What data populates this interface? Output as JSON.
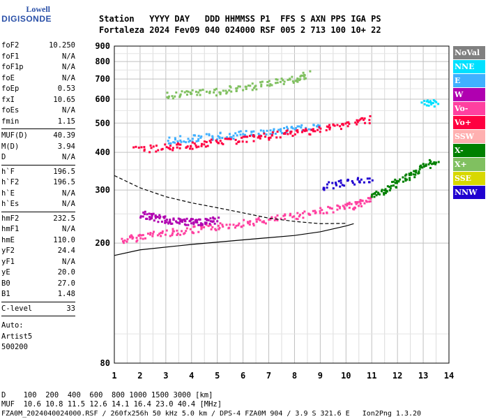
{
  "logo": {
    "line1": "Lowell",
    "line2": "DIGISONDE"
  },
  "header": {
    "labels": "Station   YYYY DAY   DDD HHMMSS P1  FFS S AXN PPS IGA PS",
    "values": "Fortaleza 2024 Fev09 040 024000 RSF 005 2 713 100 10+ 22"
  },
  "params": {
    "group1": [
      {
        "k": "foF2",
        "v": "10.250"
      },
      {
        "k": "foF1",
        "v": "N/A"
      },
      {
        "k": "foF1p",
        "v": "N/A"
      },
      {
        "k": "foE",
        "v": "N/A"
      },
      {
        "k": "foEp",
        "v": "0.53"
      },
      {
        "k": "fxI",
        "v": "10.65"
      },
      {
        "k": "foEs",
        "v": "N/A"
      },
      {
        "k": "fmin",
        "v": "1.15"
      }
    ],
    "group2": [
      {
        "k": "MUF(D)",
        "v": "40.39"
      },
      {
        "k": "M(D)",
        "v": "3.94"
      },
      {
        "k": "D",
        "v": "N/A"
      }
    ],
    "group3": [
      {
        "k": "h`F",
        "v": "196.5"
      },
      {
        "k": "h`F2",
        "v": "196.5"
      },
      {
        "k": "h`E",
        "v": "N/A"
      },
      {
        "k": "h`Es",
        "v": "N/A"
      }
    ],
    "group4": [
      {
        "k": "hmF2",
        "v": "232.5"
      },
      {
        "k": "hmF1",
        "v": "N/A"
      },
      {
        "k": "hmE",
        "v": "110.0"
      },
      {
        "k": "yF2",
        "v": "24.4"
      },
      {
        "k": "yF1",
        "v": "N/A"
      },
      {
        "k": "yE",
        "v": "20.0"
      },
      {
        "k": "B0",
        "v": "27.0"
      },
      {
        "k": "B1",
        "v": "1.48"
      }
    ],
    "group5": [
      {
        "k": "C-level",
        "v": "33"
      }
    ],
    "auto": [
      "Auto:",
      "Artist5",
      "500200"
    ]
  },
  "legend": [
    {
      "label": "NoVal",
      "color": "#808080"
    },
    {
      "label": "NNE",
      "color": "#00e0ff"
    },
    {
      "label": "E",
      "color": "#40b0ff"
    },
    {
      "label": "W",
      "color": "#b000b0"
    },
    {
      "label": "Vo-",
      "color": "#ff40a0"
    },
    {
      "label": "Vo+",
      "color": "#ff0040"
    },
    {
      "label": "SSW",
      "color": "#ffb0b0"
    },
    {
      "label": "X-",
      "color": "#008000"
    },
    {
      "label": "X+",
      "color": "#80c060"
    },
    {
      "label": "SSE",
      "color": "#d8d800"
    },
    {
      "label": "NNW",
      "color": "#2000d0"
    }
  ],
  "bottom": {
    "d_line": "D    100  200  400  600  800 1000 1500 3000 [km]",
    "muf_line": "MUF  10.6 10.8 11.5 12.6 14.1 16.4 23.0 40.4 [MHz]",
    "footer": "FZA0M_2024040024000.RSF / 260fx256h 50 kHz 5.0 km / DPS-4 FZA0M 904 / 3.9 S 321.6 E   Ion2Png 1.3.20"
  },
  "chart_data": {
    "type": "scatter",
    "xlim": [
      1,
      14
    ],
    "ylim": [
      80,
      900
    ],
    "y_axis_scale": "log",
    "x_ticks": [
      1,
      2,
      3,
      4,
      5,
      6,
      7,
      8,
      9,
      10,
      11,
      12,
      13,
      14
    ],
    "y_ticks": [
      80,
      200,
      300,
      400,
      500,
      600,
      700,
      800,
      900
    ],
    "grid": true,
    "traces": [
      {
        "name": "Vo-",
        "color": "#ff40a0",
        "x": [
          1.3,
          2,
          3,
          4,
          5,
          6,
          7,
          8,
          9,
          10,
          10.5,
          11
        ],
        "y": [
          205,
          212,
          218,
          222,
          228,
          235,
          240,
          248,
          258,
          265,
          272,
          285
        ]
      },
      {
        "name": "X-",
        "color": "#008000",
        "x": [
          11,
          11.5,
          12,
          12.5,
          13,
          13.5
        ],
        "y": [
          290,
          300,
          320,
          340,
          360,
          380
        ]
      },
      {
        "name": "W",
        "color": "#b000b0",
        "x": [
          2,
          2.5,
          3,
          3.5,
          4,
          4.5,
          5
        ],
        "y": [
          250,
          245,
          240,
          238,
          236,
          238,
          240
        ]
      },
      {
        "name": "E",
        "color": "#40b0ff",
        "x": [
          3,
          4,
          5,
          6,
          7,
          8,
          9
        ],
        "y": [
          440,
          448,
          455,
          462,
          470,
          480,
          495
        ]
      },
      {
        "name": "Vo+",
        "color": "#ff0040",
        "x": [
          1.8,
          3,
          4,
          5,
          6,
          7,
          8,
          9,
          10,
          11
        ],
        "y": [
          410,
          418,
          425,
          435,
          445,
          455,
          468,
          480,
          500,
          520
        ]
      },
      {
        "name": "X+",
        "color": "#80c060",
        "x": [
          3,
          4,
          5,
          6,
          7,
          8,
          8.5
        ],
        "y": [
          620,
          630,
          640,
          660,
          680,
          705,
          730
        ]
      },
      {
        "name": "NNW",
        "color": "#2000d0",
        "x": [
          9,
          10,
          11
        ],
        "y": [
          310,
          320,
          330
        ]
      },
      {
        "name": "NNE",
        "color": "#00e0ff",
        "x": [
          13,
          13.5
        ],
        "y": [
          580,
          590
        ]
      }
    ],
    "profile_dashed": {
      "x": [
        1,
        2,
        3,
        4,
        5,
        6,
        7,
        8,
        9,
        10
      ],
      "y": [
        335,
        305,
        285,
        272,
        262,
        252,
        242,
        236,
        232,
        232.5
      ]
    },
    "profile_solid": {
      "x": [
        1,
        2,
        4,
        6,
        8,
        9,
        10,
        10.3
      ],
      "y": [
        182,
        190,
        198,
        205,
        212,
        218,
        228,
        232
      ]
    }
  }
}
